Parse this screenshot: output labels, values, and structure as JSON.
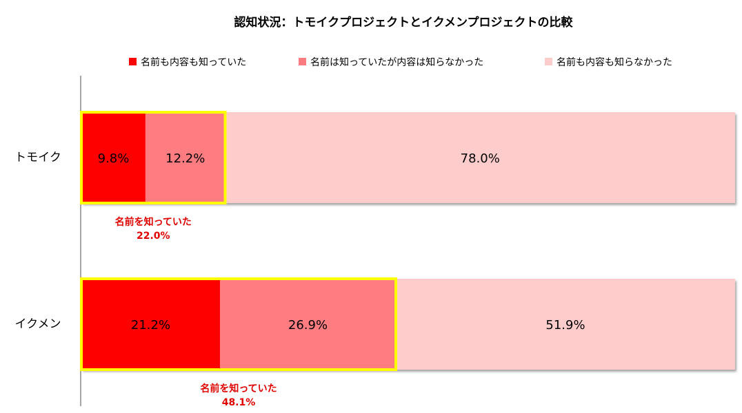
{
  "chart_data": {
    "type": "bar",
    "orientation": "horizontal",
    "stacked": true,
    "percent": true,
    "title": "認知状況：トモイクプロジェクトとイクメンプロジェクトの比較",
    "categories": [
      "トモイク",
      "イクメン"
    ],
    "series": [
      {
        "name": "名前も内容も知っていた",
        "color": "#ff0000",
        "values": [
          9.8,
          21.2
        ],
        "labels": [
          "9.8%",
          "21.2%"
        ]
      },
      {
        "name": "名前は知っていたが内容は知らなかった",
        "color": "#ff7c80",
        "values": [
          12.2,
          26.9
        ],
        "labels": [
          "12.2%",
          "26.9%"
        ]
      },
      {
        "name": "名前も内容も知らなかった",
        "color": "#ffcccc",
        "values": [
          78.0,
          51.9
        ],
        "labels": [
          "78.0%",
          "51.9%"
        ]
      }
    ],
    "xlim": [
      0,
      100
    ],
    "legend_position": "top",
    "highlight": {
      "color": "#ffff00",
      "series_count": 2,
      "callouts": [
        {
          "line1": "名前を知っていた",
          "line2": "22.0%"
        },
        {
          "line1": "名前を知っていた",
          "line2": "48.1%"
        }
      ]
    }
  }
}
